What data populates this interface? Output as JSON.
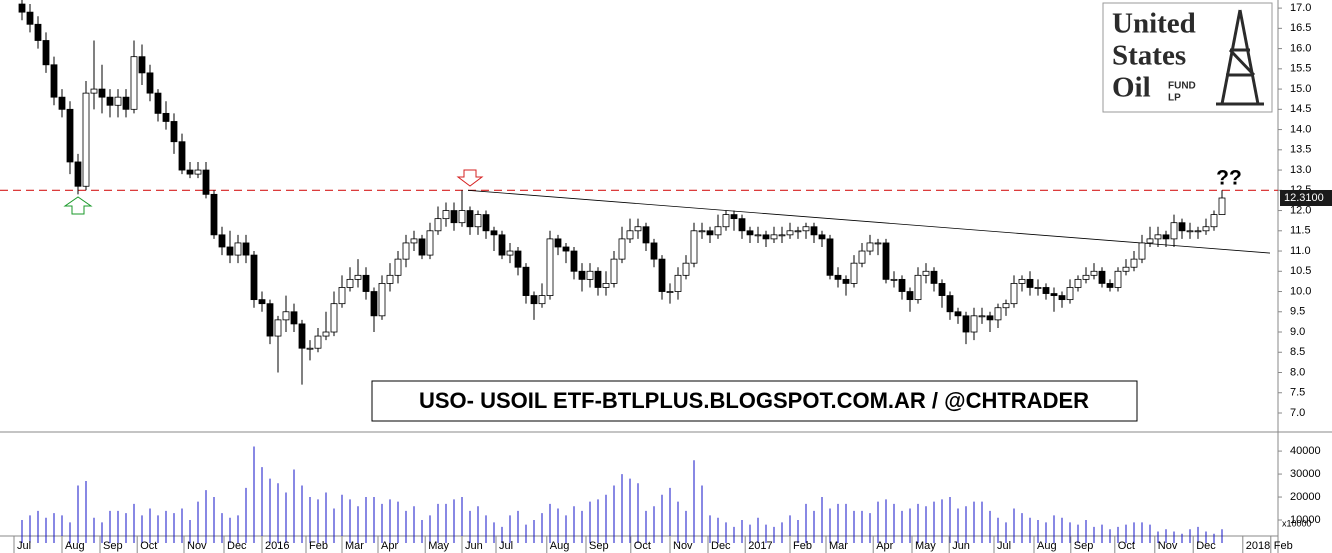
{
  "chart_data": [
    {
      "type": "candlestick",
      "open": [
        17.1,
        16.9,
        16.6,
        16.2,
        15.6,
        14.8,
        14.5,
        13.2,
        12.6,
        14.9,
        15.0,
        14.8,
        14.6,
        14.8,
        14.5,
        15.8,
        15.4,
        14.9,
        14.4,
        14.2,
        13.7,
        13.0,
        12.9,
        13.0,
        12.4,
        11.4,
        11.1,
        10.9,
        11.2,
        10.9,
        9.8,
        9.7,
        8.9,
        9.3,
        9.5,
        9.2,
        8.6,
        8.6,
        8.9,
        9.0,
        9.7,
        10.1,
        10.3,
        10.4,
        10.0,
        9.4,
        10.2,
        10.4,
        10.8,
        11.2,
        11.3,
        10.9,
        11.5,
        11.8,
        12.0,
        11.7,
        12.0,
        11.6,
        11.9,
        11.5,
        11.4,
        10.9,
        11.0,
        10.6,
        9.9,
        9.7,
        9.9,
        11.3,
        11.1,
        11.0,
        10.5,
        10.3,
        10.5,
        10.1,
        10.2,
        10.8,
        11.3,
        11.5,
        11.6,
        11.2,
        10.8,
        10.0,
        10.0,
        10.4,
        10.7,
        11.5,
        11.5,
        11.4,
        11.6,
        11.9,
        11.8,
        11.5,
        11.4,
        11.4,
        11.3,
        11.4,
        11.4,
        11.5,
        11.5,
        11.6,
        11.4,
        11.3,
        10.4,
        10.3,
        10.2,
        10.7,
        11.0,
        11.2,
        11.2,
        10.3,
        10.3,
        10.0,
        9.8,
        10.4,
        10.5,
        10.2,
        9.9,
        9.5,
        9.4,
        9.0,
        9.4,
        9.4,
        9.3,
        9.6,
        9.7,
        10.2,
        10.3,
        10.1,
        10.1,
        9.95,
        9.9,
        9.8,
        10.1,
        10.3,
        10.4,
        10.5,
        10.2,
        10.1,
        10.5,
        10.6,
        10.8,
        11.2,
        11.3,
        11.4,
        11.3,
        11.7,
        11.5,
        11.5,
        11.5,
        11.6,
        11.9
      ],
      "high": [
        17.3,
        17.1,
        16.8,
        16.4,
        15.8,
        15.0,
        14.7,
        13.4,
        15.2,
        16.2,
        15.6,
        15.0,
        15.0,
        15.0,
        16.2,
        16.1,
        15.6,
        15.0,
        14.7,
        14.4,
        13.9,
        13.2,
        13.2,
        13.2,
        12.5,
        11.6,
        11.5,
        11.4,
        11.4,
        11.0,
        10.0,
        9.8,
        9.4,
        9.9,
        9.7,
        9.3,
        8.8,
        9.1,
        9.5,
        10.0,
        10.4,
        10.6,
        10.8,
        10.6,
        10.1,
        10.4,
        10.7,
        11.0,
        11.4,
        11.5,
        11.4,
        11.7,
        12.1,
        12.2,
        12.2,
        12.5,
        12.1,
        12.0,
        12.0,
        11.6,
        11.5,
        11.2,
        11.1,
        10.7,
        10.0,
        10.2,
        11.5,
        11.4,
        11.2,
        11.1,
        10.7,
        10.7,
        10.6,
        10.5,
        11.0,
        11.6,
        11.8,
        11.8,
        11.7,
        11.3,
        10.9,
        10.2,
        10.6,
        10.9,
        11.7,
        11.7,
        11.6,
        11.9,
        12.0,
        12.0,
        11.9,
        11.6,
        11.6,
        11.5,
        11.6,
        11.6,
        11.7,
        11.6,
        11.7,
        11.7,
        11.5,
        11.4,
        10.6,
        10.4,
        10.9,
        11.2,
        11.4,
        11.3,
        11.3,
        10.5,
        10.4,
        10.1,
        10.6,
        10.7,
        10.6,
        10.3,
        10.0,
        9.6,
        9.5,
        9.6,
        9.6,
        9.5,
        9.7,
        9.8,
        10.4,
        10.4,
        10.5,
        10.3,
        10.2,
        10.1,
        10.0,
        10.3,
        10.4,
        10.6,
        10.7,
        10.6,
        10.3,
        10.6,
        10.8,
        11.0,
        11.4,
        11.6,
        11.6,
        11.5,
        11.9,
        11.8,
        11.7,
        11.6,
        11.8,
        12.0,
        12.5
      ],
      "low": [
        16.7,
        16.4,
        16.0,
        15.4,
        14.6,
        14.3,
        12.9,
        12.4,
        12.5,
        14.5,
        14.4,
        14.3,
        14.3,
        14.3,
        14.4,
        15.1,
        14.7,
        14.2,
        14.0,
        13.4,
        12.9,
        12.8,
        12.8,
        12.3,
        11.3,
        10.9,
        10.7,
        10.7,
        10.7,
        9.6,
        9.5,
        8.7,
        8.0,
        9.0,
        9.0,
        7.7,
        8.3,
        8.5,
        8.8,
        8.9,
        9.6,
        10.0,
        10.1,
        9.8,
        9.0,
        9.3,
        10.0,
        10.2,
        10.6,
        11.0,
        10.8,
        10.8,
        11.4,
        11.6,
        11.5,
        11.6,
        11.4,
        11.4,
        11.3,
        11.0,
        10.8,
        10.7,
        10.4,
        9.7,
        9.3,
        9.6,
        9.8,
        10.9,
        10.7,
        10.3,
        10.0,
        10.1,
        9.9,
        9.9,
        10.1,
        10.7,
        11.2,
        11.3,
        11.0,
        10.6,
        9.8,
        9.7,
        9.8,
        10.3,
        10.6,
        11.3,
        11.2,
        11.3,
        11.5,
        11.5,
        11.3,
        11.2,
        11.2,
        11.1,
        11.2,
        11.2,
        11.3,
        11.3,
        11.3,
        11.2,
        11.1,
        10.3,
        10.1,
        9.9,
        10.1,
        10.6,
        10.9,
        10.9,
        10.2,
        10.1,
        9.8,
        9.5,
        9.7,
        10.2,
        10.0,
        9.6,
        9.3,
        9.2,
        8.7,
        8.8,
        9.2,
        9.0,
        9.1,
        9.4,
        9.6,
        10.0,
        9.9,
        9.9,
        9.8,
        9.5,
        9.6,
        9.7,
        10.0,
        10.2,
        10.3,
        10.1,
        10.0,
        10.0,
        10.4,
        10.5,
        10.7,
        11.1,
        11.1,
        11.1,
        11.1,
        11.3,
        11.3,
        11.3,
        11.4,
        11.5,
        11.9
      ],
      "close": [
        16.9,
        16.6,
        16.2,
        15.6,
        14.8,
        14.5,
        13.2,
        12.6,
        14.9,
        15.0,
        14.8,
        14.6,
        14.8,
        14.5,
        15.8,
        15.4,
        14.9,
        14.4,
        14.2,
        13.7,
        13.0,
        12.9,
        13.0,
        12.4,
        11.4,
        11.1,
        10.9,
        11.2,
        10.9,
        9.8,
        9.7,
        8.9,
        9.3,
        9.5,
        9.2,
        8.6,
        8.6,
        8.9,
        9.0,
        9.7,
        10.1,
        10.3,
        10.4,
        10.0,
        9.4,
        10.2,
        10.4,
        10.8,
        11.2,
        11.3,
        10.9,
        11.5,
        11.8,
        12.0,
        11.7,
        12.0,
        11.6,
        11.9,
        11.5,
        11.4,
        10.9,
        11.0,
        10.6,
        9.9,
        9.7,
        9.9,
        11.3,
        11.1,
        11.0,
        10.5,
        10.3,
        10.5,
        10.1,
        10.2,
        10.8,
        11.3,
        11.5,
        11.6,
        11.2,
        10.8,
        10.0,
        10.0,
        10.4,
        10.7,
        11.5,
        11.5,
        11.4,
        11.6,
        11.9,
        11.8,
        11.5,
        11.4,
        11.4,
        11.3,
        11.4,
        11.4,
        11.5,
        11.5,
        11.6,
        11.4,
        11.3,
        10.4,
        10.3,
        10.2,
        10.7,
        11.0,
        11.2,
        11.2,
        10.3,
        10.3,
        10.0,
        9.8,
        10.4,
        10.5,
        10.2,
        9.9,
        9.5,
        9.4,
        9.0,
        9.4,
        9.4,
        9.3,
        9.6,
        9.7,
        10.2,
        10.3,
        10.1,
        10.1,
        9.95,
        9.9,
        9.8,
        10.1,
        10.3,
        10.4,
        10.5,
        10.2,
        10.1,
        10.5,
        10.6,
        10.8,
        11.2,
        11.3,
        11.4,
        11.3,
        11.7,
        11.5,
        11.5,
        11.5,
        11.6,
        11.9,
        12.31
      ],
      "xlim": [
        -2.75,
        157
      ],
      "ylim": [
        6.58,
        17.2
      ],
      "yticks": [
        {
          "value": 7,
          "label": "7.0"
        },
        {
          "value": 7.5,
          "label": "7.5"
        },
        {
          "value": 8,
          "label": "8.0"
        },
        {
          "value": 8.5,
          "label": "8.5"
        },
        {
          "value": 9,
          "label": "9.0"
        },
        {
          "value": 9.5,
          "label": "9.5"
        },
        {
          "value": 10,
          "label": "10.0"
        },
        {
          "value": 10.5,
          "label": "10.5"
        },
        {
          "value": 11,
          "label": "11.0"
        },
        {
          "value": 11.5,
          "label": "11.5"
        },
        {
          "value": 12,
          "label": "12.0"
        },
        {
          "value": 12.5,
          "label": "12.5"
        },
        {
          "value": 13,
          "label": "13.0"
        },
        {
          "value": 13.5,
          "label": "13.5"
        },
        {
          "value": 14,
          "label": "14.0"
        },
        {
          "value": 14.5,
          "label": "14.5"
        },
        {
          "value": 15,
          "label": "15.0"
        },
        {
          "value": 15.5,
          "label": "15.5"
        },
        {
          "value": 16,
          "label": "16.0"
        },
        {
          "value": 16.5,
          "label": "16.5"
        },
        {
          "value": 17,
          "label": "17.0"
        }
      ],
      "hline": 12.5,
      "hline_color": "#d62020",
      "trendline": {
        "x": [
          55.75,
          156
        ],
        "y": [
          12.5,
          10.95
        ]
      },
      "last_price": {
        "value": 12.31,
        "label": "12.3100"
      },
      "annotation": "??",
      "banner": "USO- USOIL ETF-BTLPLUS.BLOGSPOT.COM.AR / @CHTRADER",
      "logo": [
        "United",
        "States",
        "Oil",
        "FUND",
        "LP"
      ]
    },
    {
      "type": "bar",
      "color": "#1010c8",
      "multiplier": "x10000",
      "values": [
        10000,
        12000,
        14000,
        11000,
        13000,
        12000,
        9000,
        25000,
        27000,
        11000,
        9000,
        14000,
        14000,
        13000,
        17000,
        12000,
        15000,
        12000,
        14000,
        13000,
        15000,
        10000,
        18000,
        23000,
        20000,
        13000,
        11000,
        12000,
        24000,
        42000,
        33000,
        28000,
        26000,
        22000,
        32000,
        25000,
        20000,
        19000,
        22000,
        15000,
        21000,
        19000,
        16000,
        20000,
        20000,
        17000,
        19000,
        18000,
        14000,
        16000,
        10000,
        12000,
        17000,
        17000,
        19000,
        20000,
        14000,
        16000,
        12000,
        9000,
        7000,
        12000,
        14000,
        8000,
        10000,
        13000,
        17000,
        15000,
        12000,
        16000,
        14000,
        18000,
        19000,
        21000,
        25000,
        30000,
        28000,
        26000,
        14000,
        16000,
        21000,
        24000,
        18000,
        14000,
        36000,
        25000,
        12000,
        11000,
        9000,
        7000,
        10000,
        8000,
        11000,
        8000,
        7000,
        9000,
        12000,
        10000,
        17000,
        14000,
        20000,
        15000,
        17000,
        17000,
        14000,
        14000,
        13000,
        18000,
        19000,
        17000,
        14000,
        15000,
        17000,
        16000,
        18000,
        19000,
        20000,
        15000,
        16000,
        18000,
        18000,
        14000,
        11000,
        9000,
        15000,
        13000,
        11000,
        10000,
        9000,
        12000,
        11000,
        9000,
        8000,
        10000,
        7000,
        8000,
        6000,
        7000,
        8000,
        9000,
        9000,
        8000,
        5000,
        6000,
        5000,
        4000,
        6000,
        7000,
        5000,
        4000,
        6000
      ],
      "ylim": [
        0,
        47000
      ],
      "yticks": [
        10000,
        20000,
        30000,
        40000
      ],
      "xlim": [
        -2.75,
        157
      ],
      "xticks": [
        {
          "value": -1,
          "label": "Jul"
        },
        {
          "value": 5,
          "label": "Aug"
        },
        {
          "value": 9.75,
          "label": "Sep"
        },
        {
          "value": 14.4,
          "label": "Oct"
        },
        {
          "value": 20.25,
          "label": "Nov"
        },
        {
          "value": 25.25,
          "label": "Dec"
        },
        {
          "value": 30,
          "label": "2016"
        },
        {
          "value": 35.5,
          "label": "Feb"
        },
        {
          "value": 40,
          "label": "Mar"
        },
        {
          "value": 44.5,
          "label": "Apr"
        },
        {
          "value": 50.4,
          "label": "May"
        },
        {
          "value": 55,
          "label": "Jun"
        },
        {
          "value": 59.25,
          "label": "Jul"
        },
        {
          "value": 65.6,
          "label": "Aug"
        },
        {
          "value": 70.5,
          "label": "Sep"
        },
        {
          "value": 76.1,
          "label": "Oct"
        },
        {
          "value": 81,
          "label": "Nov"
        },
        {
          "value": 85.75,
          "label": "Dec"
        },
        {
          "value": 90.4,
          "label": "2017"
        },
        {
          "value": 96,
          "label": "Feb"
        },
        {
          "value": 100.5,
          "label": "Mar"
        },
        {
          "value": 106.4,
          "label": "Apr"
        },
        {
          "value": 111.25,
          "label": "May"
        },
        {
          "value": 115.9,
          "label": "Jun"
        },
        {
          "value": 121.5,
          "label": "Jul"
        },
        {
          "value": 126.5,
          "label": "Aug"
        },
        {
          "value": 131.1,
          "label": "Sep"
        },
        {
          "value": 136.6,
          "label": "Oct"
        },
        {
          "value": 141.6,
          "label": "Nov"
        },
        {
          "value": 146.4,
          "label": "Dec"
        },
        {
          "value": 152.6,
          "label": "2018"
        },
        {
          "value": 156.1,
          "label": "Feb"
        }
      ]
    }
  ]
}
